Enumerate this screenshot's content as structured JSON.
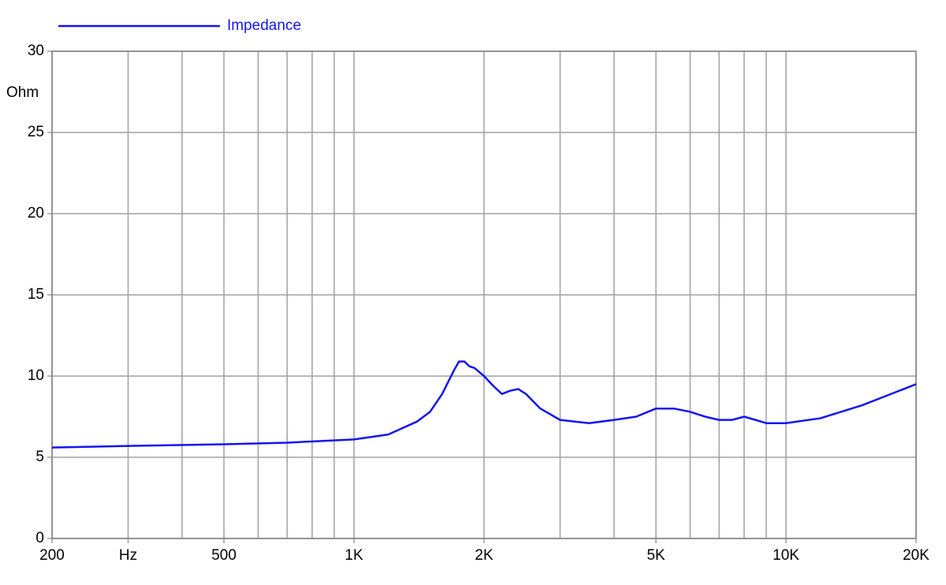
{
  "chart_data": {
    "type": "line",
    "legend_position": "top",
    "y_label": "Ohm",
    "xscale": "log",
    "grid": true,
    "xlim": [
      200,
      20000
    ],
    "xticks": [
      {
        "value": 200,
        "label": "200"
      },
      {
        "value": 300,
        "label": "Hz"
      },
      {
        "value": 500,
        "label": "500"
      },
      {
        "value": 1000,
        "label": "1K"
      },
      {
        "value": 2000,
        "label": "2K"
      },
      {
        "value": 5000,
        "label": "5K"
      },
      {
        "value": 10000,
        "label": "10K"
      },
      {
        "value": 20000,
        "label": "20K"
      }
    ],
    "x_minor_gridlines": [
      400,
      600,
      700,
      800,
      900,
      3000,
      4000,
      6000,
      7000,
      8000,
      9000
    ],
    "ylim": [
      0,
      30
    ],
    "yticks": [
      0,
      5,
      10,
      15,
      20,
      25,
      30
    ],
    "x": [
      200,
      300,
      500,
      700,
      1000,
      1200,
      1400,
      1500,
      1600,
      1700,
      1750,
      1800,
      1850,
      1900,
      2000,
      2100,
      2200,
      2300,
      2400,
      2500,
      2700,
      3000,
      3500,
      4000,
      4500,
      5000,
      5500,
      6000,
      6500,
      7000,
      7500,
      8000,
      8500,
      9000,
      10000,
      12000,
      15000,
      20000
    ],
    "series": [
      {
        "name": "Impedance",
        "color": "#1414f0",
        "values": [
          5.6,
          5.7,
          5.8,
          5.9,
          6.1,
          6.4,
          7.2,
          7.8,
          8.9,
          10.3,
          10.9,
          10.9,
          10.6,
          10.5,
          10.0,
          9.4,
          8.9,
          9.1,
          9.2,
          8.9,
          8.0,
          7.3,
          7.1,
          7.3,
          7.5,
          8.0,
          8.0,
          7.8,
          7.5,
          7.3,
          7.3,
          7.5,
          7.3,
          7.1,
          7.1,
          7.4,
          8.2,
          9.5
        ]
      }
    ]
  }
}
